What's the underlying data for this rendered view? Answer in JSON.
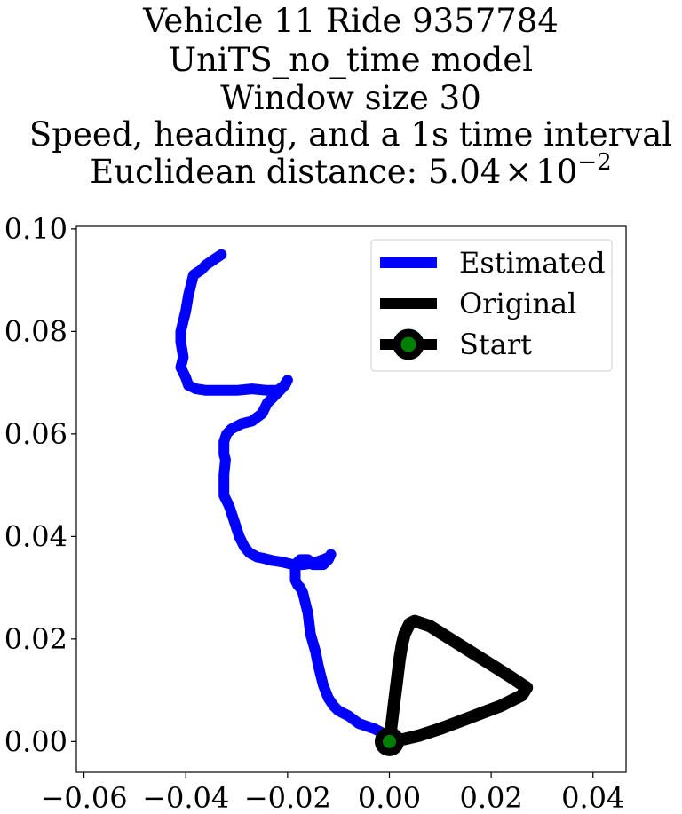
{
  "chart_data": {
    "type": "line",
    "title_lines": [
      "Vehicle 11 Ride 9357784",
      "UniTS_no_time model",
      "Window size 30",
      "Speed, heading, and a 1s time interval"
    ],
    "title_metric_prefix": "Euclidean distance: 5.04",
    "title_metric_times": "×",
    "title_metric_base": "10",
    "title_metric_exponent": "−2",
    "xlabel": "",
    "ylabel": "",
    "xlim": [
      -0.0615,
      0.0465
    ],
    "ylim": [
      -0.006,
      0.1005
    ],
    "xticks": [
      -0.06,
      -0.04,
      -0.02,
      0.0,
      0.02,
      0.04
    ],
    "xtick_labels": [
      "−0.06",
      "−0.04",
      "−0.02",
      "0.00",
      "0.02",
      "0.04"
    ],
    "yticks": [
      0.0,
      0.02,
      0.04,
      0.06,
      0.08,
      0.1
    ],
    "ytick_labels": [
      "0.00",
      "0.02",
      "0.04",
      "0.06",
      "0.08",
      "0.10"
    ],
    "grid": false,
    "legend_position": "top-right",
    "legend_labels": [
      "Estimated",
      "Original",
      "Start"
    ],
    "colors": {
      "estimated": "#0000ff",
      "original": "#000000",
      "start_marker_face": "#008000",
      "start_marker_edge": "#000000"
    },
    "series": [
      {
        "name": "Estimated",
        "x": [
          0.0,
          -0.001,
          -0.003,
          -0.006,
          -0.008,
          -0.01,
          -0.011,
          -0.012,
          -0.013,
          -0.0135,
          -0.014,
          -0.0145,
          -0.0155,
          -0.016,
          -0.0165,
          -0.017,
          -0.0175,
          -0.018,
          -0.0185,
          -0.0185,
          -0.018,
          -0.0175,
          -0.016,
          -0.015,
          -0.013,
          -0.012,
          -0.0115,
          -0.0118,
          -0.013,
          -0.015,
          -0.017,
          -0.019,
          -0.021,
          -0.023,
          -0.025,
          -0.026,
          -0.0275,
          -0.0285,
          -0.0295,
          -0.0305,
          -0.0315,
          -0.0325,
          -0.0325,
          -0.0322,
          -0.0325,
          -0.0325,
          -0.032,
          -0.031,
          -0.03,
          -0.029,
          -0.027,
          -0.025,
          -0.024,
          -0.023,
          -0.022,
          -0.021,
          -0.02,
          -0.0205,
          -0.022,
          -0.024,
          -0.027,
          -0.03,
          -0.033,
          -0.036,
          -0.038,
          -0.0395,
          -0.04,
          -0.041,
          -0.0405,
          -0.041,
          -0.041,
          -0.0405,
          -0.04,
          -0.0395,
          -0.039,
          -0.0385,
          -0.037,
          -0.036,
          -0.0345,
          -0.033
        ],
        "y": [
          0.0,
          0.0015,
          0.0025,
          0.0035,
          0.005,
          0.006,
          0.007,
          0.0085,
          0.011,
          0.013,
          0.015,
          0.0175,
          0.021,
          0.025,
          0.027,
          0.029,
          0.03,
          0.0305,
          0.0315,
          0.0345,
          0.035,
          0.0355,
          0.0355,
          0.0345,
          0.0345,
          0.0355,
          0.0365,
          0.036,
          0.0355,
          0.0348,
          0.0345,
          0.0345,
          0.035,
          0.0353,
          0.0358,
          0.036,
          0.0368,
          0.038,
          0.04,
          0.043,
          0.046,
          0.048,
          0.052,
          0.055,
          0.056,
          0.0585,
          0.06,
          0.061,
          0.0615,
          0.062,
          0.0625,
          0.064,
          0.066,
          0.067,
          0.068,
          0.069,
          0.0705,
          0.0695,
          0.0685,
          0.0685,
          0.0688,
          0.0685,
          0.0685,
          0.0685,
          0.0688,
          0.0695,
          0.071,
          0.073,
          0.075,
          0.078,
          0.08,
          0.082,
          0.084,
          0.087,
          0.089,
          0.091,
          0.092,
          0.093,
          0.094,
          0.095
        ]
      },
      {
        "name": "Original",
        "x": [
          0.0,
          0.0005,
          0.001,
          0.0015,
          0.002,
          0.0025,
          0.003,
          0.004,
          0.005,
          0.008,
          0.012,
          0.016,
          0.02,
          0.024,
          0.027,
          0.026,
          0.022,
          0.018,
          0.014,
          0.01,
          0.006,
          0.003,
          0.001,
          0.0
        ],
        "y": [
          0.0,
          0.004,
          0.008,
          0.012,
          0.016,
          0.019,
          0.021,
          0.023,
          0.0235,
          0.0225,
          0.02,
          0.0175,
          0.015,
          0.0125,
          0.0105,
          0.009,
          0.007,
          0.0055,
          0.004,
          0.0025,
          0.0012,
          0.0005,
          0.0002,
          0.0
        ]
      }
    ],
    "start_point": {
      "name": "Start",
      "x": 0.0,
      "y": 0.0
    }
  }
}
